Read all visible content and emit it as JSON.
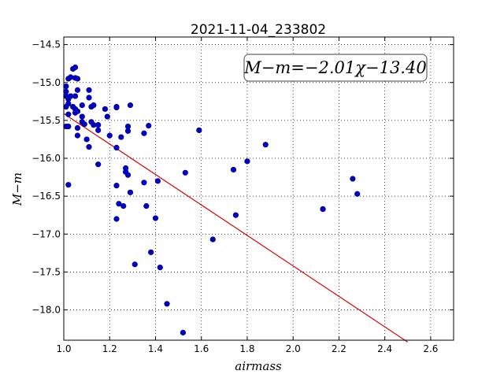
{
  "chart_data": {
    "type": "scatter",
    "title": "2021-11-04_233802",
    "xlabel": "airmass",
    "ylabel": "M−m",
    "xlim": [
      1.0,
      2.7
    ],
    "ylim": [
      -18.4,
      -14.4
    ],
    "y_inverted": false,
    "grid": true,
    "x_ticks": [
      1.0,
      1.2,
      1.4,
      1.6,
      1.8,
      2.0,
      2.2,
      2.4,
      2.6
    ],
    "x_tick_labels": [
      "1.0",
      "1.2",
      "1.4",
      "1.6",
      "1.8",
      "2.0",
      "2.2",
      "2.4",
      "2.6"
    ],
    "y_ticks": [
      -14.5,
      -15.0,
      -15.5,
      -16.0,
      -16.5,
      -17.0,
      -17.5,
      -18.0
    ],
    "y_tick_labels": [
      "−14.5",
      "−15.0",
      "−15.5",
      "−16.0",
      "−16.5",
      "−17.0",
      "−17.5",
      "−18.0"
    ],
    "annotation": "M−m=−2.01χ−13.40",
    "annotation_position": "top-right",
    "fit_line": {
      "slope": -2.01,
      "intercept": -13.4,
      "x_range": [
        1.0,
        2.5
      ],
      "color": "#dd0000"
    },
    "point_color": "#0000cc",
    "points": [
      [
        1.01,
        -15.05
      ],
      [
        1.01,
        -15.12
      ],
      [
        1.01,
        -15.18
      ],
      [
        1.02,
        -15.22
      ],
      [
        1.01,
        -15.32
      ],
      [
        1.02,
        -15.28
      ],
      [
        1.03,
        -15.18
      ],
      [
        1.02,
        -15.42
      ],
      [
        1.01,
        -15.58
      ],
      [
        1.02,
        -15.58
      ],
      [
        1.02,
        -16.35
      ],
      [
        1.02,
        -14.95
      ],
      [
        1.03,
        -14.93
      ],
      [
        1.04,
        -14.82
      ],
      [
        1.05,
        -14.8
      ],
      [
        1.05,
        -14.94
      ],
      [
        1.06,
        -14.95
      ],
      [
        1.04,
        -15.32
      ],
      [
        1.05,
        -15.35
      ],
      [
        1.05,
        -15.4
      ],
      [
        1.06,
        -15.38
      ],
      [
        1.06,
        -15.1
      ],
      [
        1.05,
        -15.18
      ],
      [
        1.06,
        -15.6
      ],
      [
        1.06,
        -15.7
      ],
      [
        1.08,
        -15.3
      ],
      [
        1.08,
        -15.45
      ],
      [
        1.08,
        -15.52
      ],
      [
        1.09,
        -15.55
      ],
      [
        1.1,
        -15.75
      ],
      [
        1.11,
        -15.85
      ],
      [
        1.11,
        -15.1
      ],
      [
        1.11,
        -15.2
      ],
      [
        1.12,
        -15.32
      ],
      [
        1.13,
        -15.3
      ],
      [
        1.12,
        -15.52
      ],
      [
        1.13,
        -15.56
      ],
      [
        1.15,
        -15.56
      ],
      [
        1.15,
        -15.63
      ],
      [
        1.15,
        -16.08
      ],
      [
        1.18,
        -15.35
      ],
      [
        1.19,
        -15.45
      ],
      [
        1.2,
        -15.7
      ],
      [
        1.23,
        -15.32
      ],
      [
        1.23,
        -15.33
      ],
      [
        1.23,
        -15.86
      ],
      [
        1.23,
        -16.36
      ],
      [
        1.23,
        -16.8
      ],
      [
        1.24,
        -16.6
      ],
      [
        1.25,
        -15.72
      ],
      [
        1.26,
        -16.63
      ],
      [
        1.27,
        -16.13
      ],
      [
        1.27,
        -16.18
      ],
      [
        1.28,
        -16.22
      ],
      [
        1.28,
        -15.58
      ],
      [
        1.28,
        -15.64
      ],
      [
        1.29,
        -15.3
      ],
      [
        1.29,
        -16.45
      ],
      [
        1.31,
        -17.4
      ],
      [
        1.35,
        -15.67
      ],
      [
        1.35,
        -16.32
      ],
      [
        1.36,
        -16.63
      ],
      [
        1.37,
        -15.57
      ],
      [
        1.38,
        -17.24
      ],
      [
        1.4,
        -16.79
      ],
      [
        1.41,
        -16.3
      ],
      [
        1.42,
        -17.44
      ],
      [
        1.45,
        -17.92
      ],
      [
        1.52,
        -18.3
      ],
      [
        1.53,
        -16.19
      ],
      [
        1.59,
        -15.63
      ],
      [
        1.65,
        -17.07
      ],
      [
        1.74,
        -16.15
      ],
      [
        1.75,
        -16.75
      ],
      [
        1.8,
        -16.04
      ],
      [
        1.88,
        -15.82
      ],
      [
        2.13,
        -16.67
      ],
      [
        2.13,
        -16.67
      ],
      [
        2.26,
        -16.27
      ],
      [
        2.28,
        -16.47
      ]
    ]
  }
}
